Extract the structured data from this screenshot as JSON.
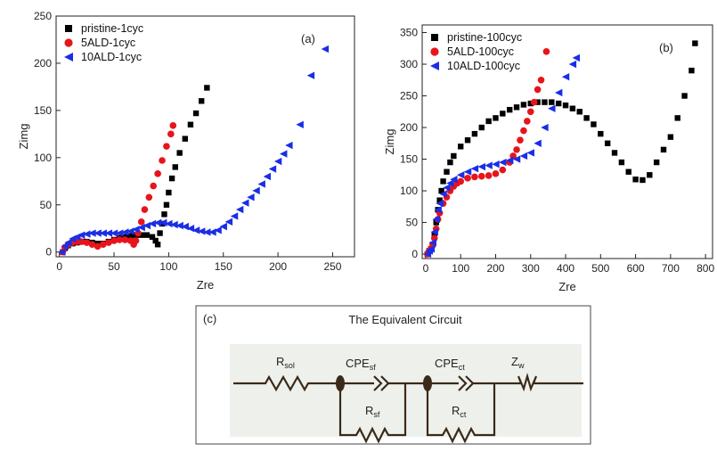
{
  "chart_data": [
    {
      "type": "scatter",
      "panel_label": "(a)",
      "x_label": "Zre",
      "y_label": "Zimg",
      "xlim": [
        -3,
        270
      ],
      "ylim": [
        -5,
        250
      ],
      "xticks": [
        0,
        50,
        100,
        150,
        200,
        250
      ],
      "yticks": [
        0,
        50,
        100,
        150,
        200,
        250
      ],
      "legend": "upper left",
      "series": [
        {
          "name": "pristine-1cyc",
          "color": "#000000",
          "marker": "square",
          "x": [
            3,
            5,
            8,
            12,
            16,
            20,
            25,
            30,
            35,
            40,
            45,
            50,
            55,
            60,
            65,
            70,
            75,
            80,
            85,
            88,
            90,
            92,
            94,
            96,
            98,
            100,
            103,
            106,
            110,
            115,
            120,
            125,
            130,
            135
          ],
          "values": [
            0,
            4,
            7,
            9,
            10,
            11,
            11,
            10,
            9,
            9,
            11,
            13,
            15,
            16,
            17,
            18,
            18,
            18,
            16,
            12,
            8,
            20,
            30,
            40,
            50,
            63,
            78,
            90,
            105,
            120,
            135,
            147,
            160,
            174
          ]
        },
        {
          "name": "5ALD-1cyc",
          "color": "#e8141b",
          "marker": "circle",
          "x": [
            3,
            5,
            8,
            12,
            16,
            20,
            25,
            30,
            35,
            40,
            45,
            50,
            55,
            60,
            65,
            68,
            70,
            72,
            75,
            78,
            82,
            86,
            90,
            94,
            98,
            102,
            104
          ],
          "values": [
            0,
            5,
            8,
            10,
            11,
            11,
            10,
            8,
            6,
            8,
            10,
            12,
            13,
            13,
            12,
            8,
            12,
            20,
            32,
            45,
            58,
            70,
            83,
            97,
            112,
            125,
            134
          ]
        },
        {
          "name": "10ALD-1cyc",
          "color": "#1a2ee6",
          "marker": "triangle",
          "x": [
            2,
            5,
            8,
            12,
            16,
            20,
            25,
            30,
            35,
            40,
            45,
            50,
            55,
            60,
            65,
            70,
            75,
            80,
            85,
            90,
            95,
            100,
            105,
            110,
            115,
            120,
            125,
            130,
            135,
            140,
            145,
            150,
            155,
            160,
            165,
            170,
            175,
            180,
            185,
            190,
            195,
            200,
            205,
            210,
            220,
            230,
            243
          ],
          "values": [
            0,
            6,
            10,
            14,
            16,
            18,
            19,
            20,
            20,
            20,
            20,
            20,
            20,
            21,
            22,
            24,
            26,
            28,
            30,
            31,
            31,
            30,
            29,
            28,
            27,
            25,
            23,
            22,
            21,
            21,
            23,
            27,
            32,
            38,
            45,
            52,
            58,
            65,
            72,
            80,
            88,
            96,
            104,
            113,
            135,
            187,
            215
          ]
        }
      ]
    },
    {
      "type": "scatter",
      "panel_label": "(b)",
      "x_label": "Zre",
      "y_label": "Zimg",
      "xlim": [
        -10,
        820
      ],
      "ylim": [
        -7,
        362
      ],
      "xticks": [
        0,
        100,
        200,
        300,
        400,
        500,
        600,
        700,
        800
      ],
      "yticks": [
        0,
        50,
        100,
        150,
        200,
        250,
        300,
        350
      ],
      "legend": "upper left",
      "series": [
        {
          "name": "pristine-100cyc",
          "color": "#000000",
          "marker": "square",
          "x": [
            5,
            10,
            15,
            20,
            25,
            30,
            35,
            40,
            45,
            50,
            60,
            70,
            80,
            100,
            120,
            140,
            160,
            180,
            200,
            220,
            240,
            260,
            280,
            300,
            320,
            340,
            360,
            380,
            400,
            420,
            440,
            460,
            480,
            500,
            520,
            540,
            560,
            580,
            600,
            620,
            640,
            660,
            680,
            700,
            720,
            740,
            760,
            770
          ],
          "values": [
            0,
            5,
            8,
            15,
            30,
            50,
            70,
            85,
            100,
            115,
            130,
            145,
            155,
            170,
            180,
            190,
            200,
            210,
            215,
            222,
            228,
            232,
            236,
            238,
            240,
            240,
            240,
            238,
            235,
            230,
            225,
            215,
            205,
            190,
            175,
            160,
            145,
            130,
            118,
            117,
            125,
            145,
            165,
            185,
            215,
            250,
            290,
            333
          ]
        },
        {
          "name": "5ALD-100cyc",
          "color": "#e8141b",
          "marker": "circle",
          "x": [
            5,
            10,
            15,
            20,
            25,
            30,
            35,
            40,
            50,
            60,
            70,
            80,
            90,
            100,
            120,
            140,
            160,
            180,
            200,
            220,
            240,
            250,
            260,
            270,
            280,
            290,
            300,
            310,
            320,
            330,
            345
          ],
          "values": [
            0,
            5,
            8,
            15,
            25,
            40,
            55,
            65,
            80,
            90,
            100,
            107,
            112,
            115,
            120,
            122,
            123,
            124,
            127,
            133,
            145,
            155,
            165,
            180,
            195,
            210,
            225,
            240,
            260,
            275,
            320
          ]
        },
        {
          "name": "10ALD-100cyc",
          "color": "#1a2ee6",
          "marker": "triangle",
          "x": [
            5,
            10,
            15,
            20,
            25,
            30,
            35,
            40,
            50,
            60,
            70,
            80,
            100,
            120,
            140,
            160,
            180,
            200,
            220,
            240,
            260,
            280,
            300,
            320,
            340,
            360,
            380,
            400,
            420,
            430
          ],
          "values": [
            0,
            5,
            8,
            18,
            35,
            55,
            70,
            80,
            95,
            105,
            112,
            118,
            125,
            130,
            135,
            138,
            140,
            142,
            145,
            148,
            150,
            155,
            160,
            175,
            200,
            230,
            255,
            280,
            300,
            310
          ]
        }
      ]
    }
  ],
  "diagram": {
    "panel_label": "(c)",
    "title": "The Equivalent Circuit",
    "components": [
      {
        "main": "R",
        "sub": "sol"
      },
      {
        "main": "CPE",
        "sub": "sf"
      },
      {
        "main": "CPE",
        "sub": "ct"
      },
      {
        "main": "Z",
        "sub": "w"
      },
      {
        "main": "R",
        "sub": "sf"
      },
      {
        "main": "R",
        "sub": "ct"
      }
    ]
  }
}
